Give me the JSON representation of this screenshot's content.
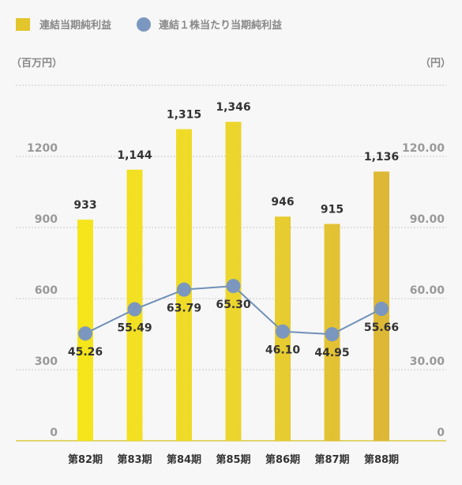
{
  "chart_data": {
    "type": "bar",
    "categories": [
      "第82期",
      "第83期",
      "第84期",
      "第85期",
      "第86期",
      "第87期",
      "第88期"
    ],
    "series": [
      {
        "name": "連結当期純利益",
        "type": "bar",
        "axis": "left",
        "values": [
          933,
          1144,
          1315,
          1346,
          946,
          915,
          1136
        ],
        "labels": [
          "933",
          "1,144",
          "1,315",
          "1,346",
          "946",
          "915",
          "1,136"
        ]
      },
      {
        "name": "連結１株当たり当期純利益",
        "type": "line",
        "axis": "right",
        "values": [
          45.26,
          55.49,
          63.79,
          65.3,
          46.1,
          44.95,
          55.66
        ],
        "labels": [
          "45.26",
          "55.49",
          "63.79",
          "65.30",
          "46.10",
          "44.95",
          "55.66"
        ]
      }
    ],
    "y_left": {
      "unit": "（百万円）",
      "ticks": [
        "0",
        "300",
        "600",
        "900",
        "1200"
      ]
    },
    "y_right": {
      "unit": "（円）",
      "ticks": [
        "0",
        "30.00",
        "60.00",
        "90.00",
        "120.00"
      ]
    },
    "grid": true,
    "legend": "top-left",
    "colors": {
      "bar_gradient": [
        "#f5e51b",
        "#ecd62e",
        "#ddb836"
      ],
      "line": "#6f8fb8",
      "point": "#7b97bf",
      "grid": "#c8c8c8",
      "baseline": "#d8c840"
    }
  }
}
